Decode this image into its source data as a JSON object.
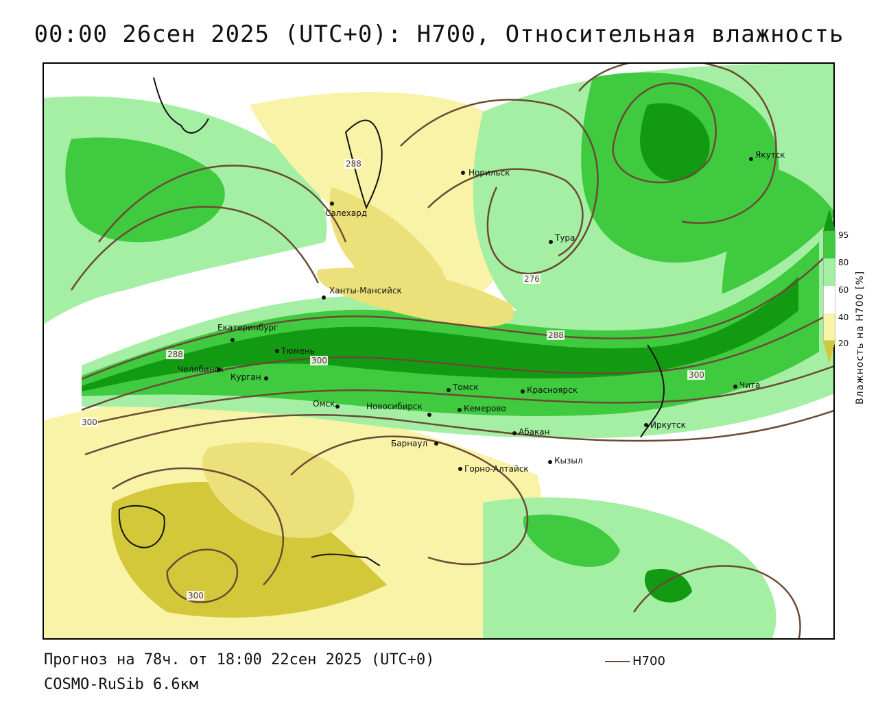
{
  "header": {
    "title": "00:00 26сен 2025 (UTC+0): H700, Относительная влажность"
  },
  "footer": {
    "forecast": "Прогноз на 78ч. от 18:00 22сен 2025 (UTC+0)",
    "model": "COSMO-RuSib 6.6км",
    "legend_label": "H700"
  },
  "colorbar": {
    "title": "Влажность на H700 [%]",
    "ticks": [
      "95",
      "80",
      "60",
      "40",
      "20"
    ]
  },
  "colors": {
    "green_dark": "#129a12",
    "green_mid": "#3fca3f",
    "green_light": "#a4efa4",
    "yellow_light": "#f8f3a6",
    "yellow_mid": "#ece07a",
    "yellow_dark": "#d2c83a",
    "contour": "#6b4a35"
  },
  "cities": [
    {
      "id": "norilsk",
      "name": "Норильск"
    },
    {
      "id": "yakutsk",
      "name": "Якутск"
    },
    {
      "id": "salekhard",
      "name": "Салехард"
    },
    {
      "id": "tura",
      "name": "Тура"
    },
    {
      "id": "khanty",
      "name": "Ханты-Мансийск"
    },
    {
      "id": "ekb",
      "name": "Екатеринбург"
    },
    {
      "id": "tyumen",
      "name": "Тюмень"
    },
    {
      "id": "chelyabinsk",
      "name": "Челябинск"
    },
    {
      "id": "kurgan",
      "name": "Курган"
    },
    {
      "id": "omsk",
      "name": "Омск"
    },
    {
      "id": "novosibirsk",
      "name": "Новосибирск"
    },
    {
      "id": "tomsk",
      "name": "Томск"
    },
    {
      "id": "kemerovo",
      "name": "Кемерово"
    },
    {
      "id": "krasnoyarsk",
      "name": "Красноярск"
    },
    {
      "id": "abakan",
      "name": "Абакан"
    },
    {
      "id": "barnaul",
      "name": "Барнаул"
    },
    {
      "id": "gorno",
      "name": "Горно-Алтайск"
    },
    {
      "id": "kyzyl",
      "name": "Кызыл"
    },
    {
      "id": "irkutsk",
      "name": "Иркутск"
    },
    {
      "id": "chita",
      "name": "Чита"
    }
  ],
  "contour_labels": [
    "288",
    "276",
    "288",
    "300",
    "300",
    "300",
    "288",
    "300"
  ]
}
